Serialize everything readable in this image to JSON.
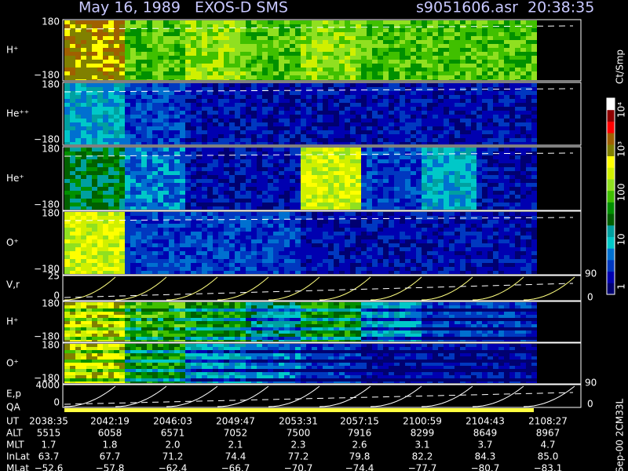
{
  "header": {
    "title": "May 16, 1989   EXOS-D SMS",
    "file": "s9051606.asr  20:38:35"
  },
  "panels": [
    {
      "label": "H⁺",
      "top": "180",
      "bottom": "−180"
    },
    {
      "label": "He⁺⁺",
      "top": "180",
      "bottom": "−180"
    },
    {
      "label": "He⁺",
      "top": "180",
      "bottom": "−180"
    },
    {
      "label": "O⁺",
      "top": "180",
      "bottom": "−180"
    },
    {
      "label": "H⁺",
      "top": "180",
      "bottom": "−180"
    },
    {
      "label": "O⁺",
      "top": "180",
      "bottom": "−180"
    }
  ],
  "vr": {
    "label": "V,r",
    "top": "25",
    "bottom": "0",
    "right_top": "90",
    "right_bottom": "0"
  },
  "ep": {
    "label": "E,p",
    "qa": "QA",
    "top": "4000",
    "bottom": "0",
    "right_top": "90",
    "right_bottom": "0"
  },
  "colorbar": {
    "unit": "Ct/Smp",
    "labels": [
      "10⁴",
      "10³",
      "100",
      "10",
      "1"
    ]
  },
  "table": {
    "rows": [
      {
        "label": "UT",
        "values": [
          "2038:35",
          "2042:19",
          "2046:03",
          "2049:47",
          "2053:31",
          "2057:15",
          "2100:59",
          "2104:43",
          "2108:27"
        ]
      },
      {
        "label": "ALT",
        "values": [
          "5515",
          "6058",
          "6571",
          "7052",
          "7500",
          "7916",
          "8299",
          "8649",
          "8967"
        ]
      },
      {
        "label": "MLT",
        "values": [
          "1.7",
          "1.8",
          "2.0",
          "2.1",
          "2.3",
          "2.6",
          "3.1",
          "3.7",
          "4.7"
        ]
      },
      {
        "label": "InLat",
        "values": [
          "63.7",
          "67.7",
          "71.2",
          "74.4",
          "77.2",
          "79.8",
          "82.2",
          "84.3",
          "85.0"
        ]
      },
      {
        "label": "MLat",
        "values": [
          "−52.6",
          "−57.8",
          "−62.4",
          "−66.7",
          "−70.7",
          "−74.4",
          "−77.7",
          "−80.7",
          "−83.1"
        ]
      }
    ]
  },
  "footer": "Sep-00 2CM33L"
}
